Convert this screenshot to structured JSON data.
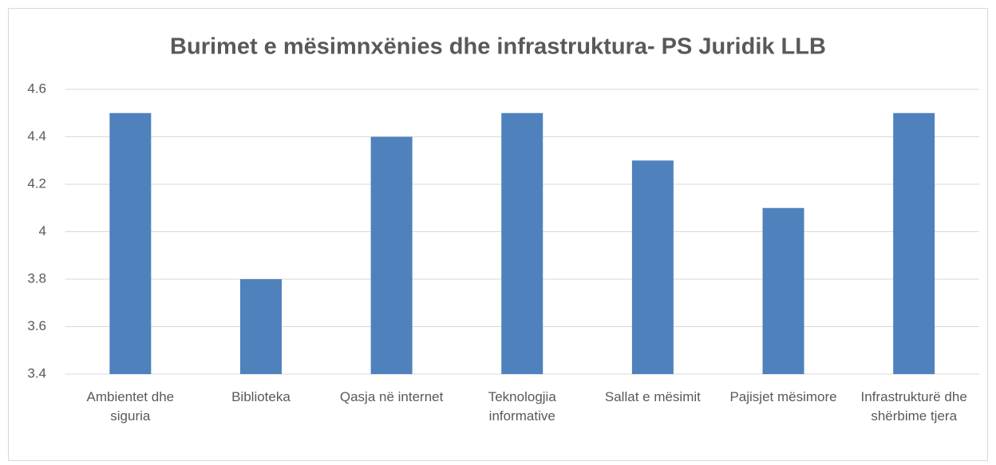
{
  "chart_data": {
    "type": "bar",
    "title": "Burimet e mësimnxënies dhe infrastruktura- PS Juridik LLB",
    "categories": [
      "Ambientet dhe siguria",
      "Biblioteka",
      "Qasja në internet",
      "Teknologjia informative",
      "Sallat e mësimit",
      "Pajisjet mësimore",
      "Infrastrukturë dhe shërbime tjera"
    ],
    "values": [
      4.5,
      3.8,
      4.4,
      4.5,
      4.3,
      4.1,
      4.5
    ],
    "color": "#4f81bd",
    "ylim": [
      3.4,
      4.6
    ],
    "yticks": [
      3.4,
      3.6,
      3.8,
      4,
      4.2,
      4.4,
      4.6
    ],
    "grid": true
  }
}
